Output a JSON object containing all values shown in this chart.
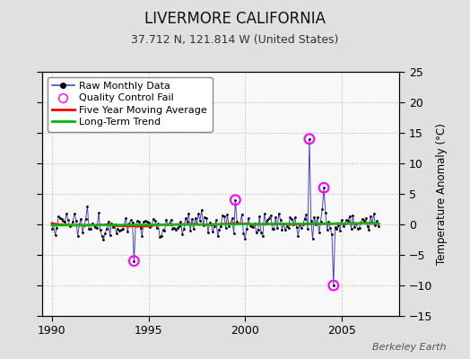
{
  "title": "LIVERMORE CALIFORNIA",
  "subtitle": "37.712 N, 121.814 W (United States)",
  "right_ylabel": "Temperature Anomaly (°C)",
  "footer": "Berkeley Earth",
  "xlim": [
    1989.5,
    2008.0
  ],
  "ylim": [
    -15,
    25
  ],
  "yticks": [
    -15,
    -10,
    -5,
    0,
    5,
    10,
    15,
    20,
    25
  ],
  "xticks": [
    1990,
    1995,
    2000,
    2005
  ],
  "bg_color": "#e0e0e0",
  "plot_bg_color": "#f8f8f8",
  "raw_line_color": "#4444cc",
  "raw_dot_color": "#000000",
  "qc_fail_color": "#ff00ff",
  "moving_avg_color": "#ff0000",
  "trend_color": "#00bb00",
  "title_fontsize": 12,
  "subtitle_fontsize": 9,
  "legend_fontsize": 8,
  "seed": 12345,
  "start_year": 1990.0,
  "n_months": 204,
  "qc_fail_times": [
    1994.25,
    1999.5,
    2003.33,
    2004.08,
    2004.58
  ],
  "qc_fail_values": [
    -6.0,
    4.0,
    14.0,
    6.0,
    -10.0
  ]
}
